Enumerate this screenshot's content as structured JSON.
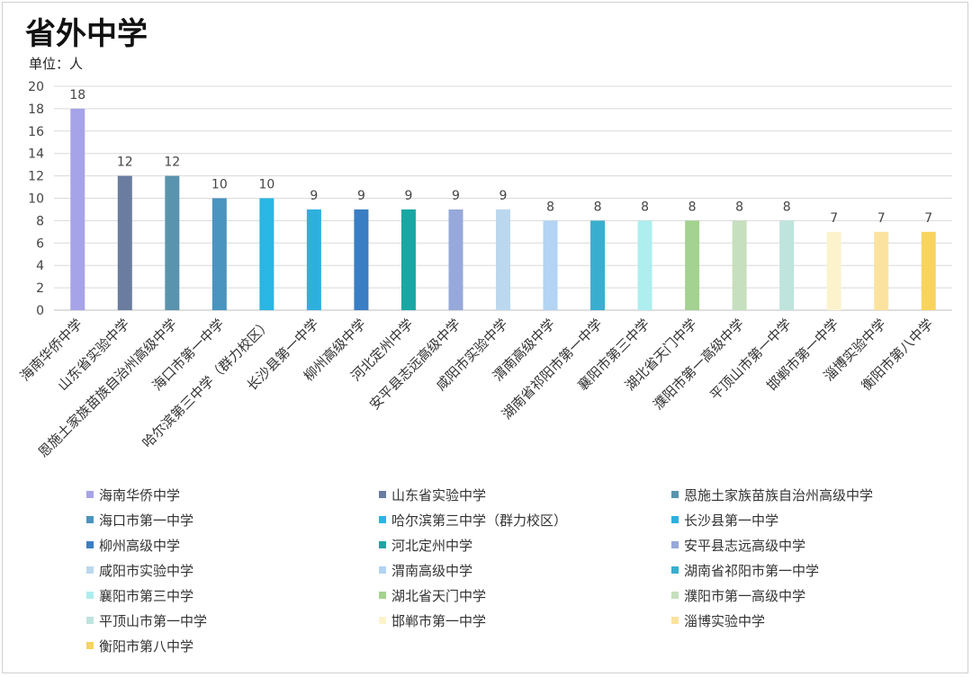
{
  "title": "省外中学",
  "unit_label": "单位：人",
  "chart_data": {
    "type": "bar",
    "ylim": [
      0,
      20
    ],
    "yticks": [
      0,
      2,
      4,
      6,
      8,
      10,
      12,
      14,
      16,
      18,
      20
    ],
    "grid": true,
    "legend_placement": "bottom",
    "categories": [
      "海南华侨中学",
      "山东省实验中学",
      "恩施土家族苗族自治州高级中学",
      "海口市第一中学",
      "哈尔滨第三中学（群力校区）",
      "长沙县第一中学",
      "柳州高级中学",
      "河北定州中学",
      "安平县志远高级中学",
      "咸阳市实验中学",
      "渭南高级中学",
      "湖南省祁阳市第一中学",
      "襄阳市第三中学",
      "湖北省天门中学",
      "濮阳市第一高级中学",
      "平顶山市第一中学",
      "邯郸市第一中学",
      "淄博实验中学",
      "衡阳市第八中学"
    ],
    "values": [
      18,
      12,
      12,
      10,
      10,
      9,
      9,
      9,
      9,
      9,
      8,
      8,
      8,
      8,
      8,
      8,
      7,
      7,
      7
    ],
    "colors": [
      "#a7a3e8",
      "#6a7ca0",
      "#5a93ad",
      "#4a94c0",
      "#29b6e3",
      "#2eb0de",
      "#3a7ec3",
      "#1aa7a3",
      "#97a8da",
      "#bcd8ee",
      "#b3d4f2",
      "#3aaecf",
      "#adeeee",
      "#a4d291",
      "#c6dfbe",
      "#bfe3dd",
      "#fcf3cd",
      "#fbe29e",
      "#f8d35e"
    ]
  }
}
